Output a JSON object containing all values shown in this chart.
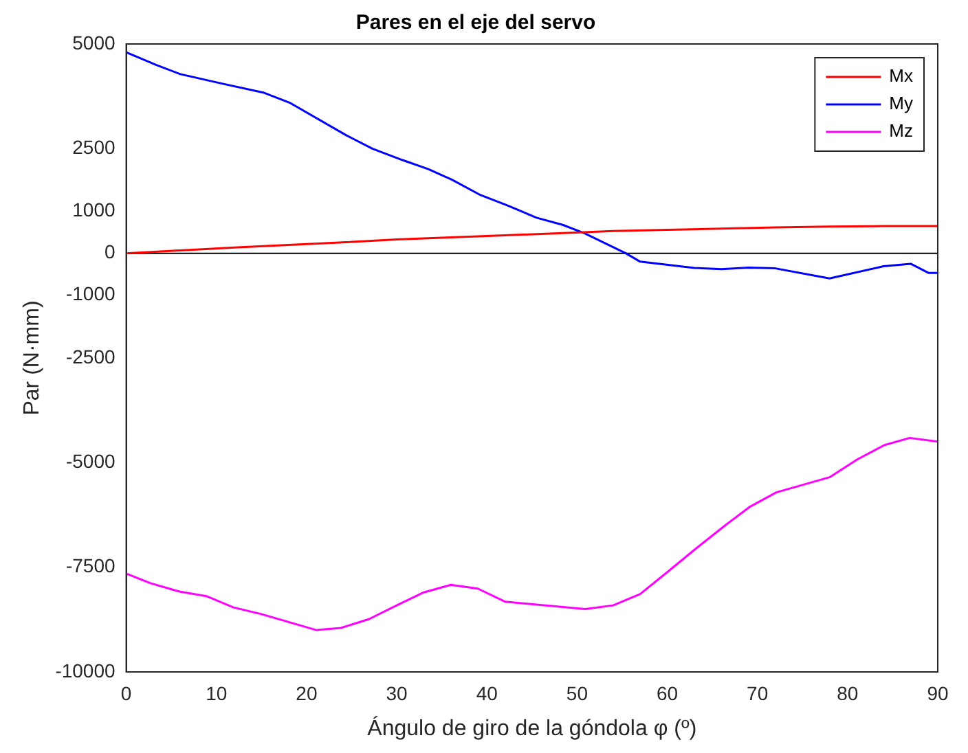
{
  "chart_data": {
    "type": "line",
    "title": "Pares en el eje del servo",
    "xlabel": "Ángulo de giro de la góndola φ (º)",
    "ylabel": "Par (N·mm)",
    "xlim": [
      0,
      90
    ],
    "xticks": [
      0,
      10,
      20,
      30,
      40,
      50,
      60,
      70,
      80,
      90
    ],
    "ylim": [
      -10000,
      5000
    ],
    "yticks": [
      -10000,
      -7500,
      -5000,
      -2500,
      -1000,
      0,
      1000,
      2500,
      5000
    ],
    "ref_lines": [
      {
        "axis": "y",
        "value": 0,
        "color": "#000000"
      }
    ],
    "legend": "top right",
    "grid": false,
    "series": [
      {
        "name": "Mx",
        "color": "#ff0000",
        "x": [
          0,
          6,
          12,
          18,
          24,
          30,
          36,
          42,
          48,
          54,
          60,
          66,
          72,
          78,
          84,
          90
        ],
        "values": [
          0,
          70,
          140,
          200,
          260,
          330,
          380,
          430,
          480,
          530,
          560,
          590,
          620,
          640,
          650,
          650
        ]
      },
      {
        "name": "My",
        "color": "#0000ff",
        "x": [
          0,
          3.3,
          6,
          10.7,
          15.2,
          18.1,
          24.4,
          27.3,
          30.6,
          33.5,
          36.1,
          39.3,
          42.3,
          45.5,
          48.4,
          50.8,
          55.4,
          57,
          63,
          66,
          69,
          72,
          78,
          84,
          87,
          89,
          90
        ],
        "values": [
          4800,
          4500,
          4280,
          4050,
          3840,
          3600,
          2820,
          2500,
          2230,
          2010,
          1760,
          1390,
          1140,
          850,
          680,
          480,
          0,
          -200,
          -350,
          -380,
          -340,
          -360,
          -600,
          -310,
          -250,
          -470,
          -470
        ]
      },
      {
        "name": "Mz",
        "color": "#ff00ff",
        "x": [
          0,
          2.7,
          5.9,
          8.9,
          11.9,
          15,
          21.1,
          23.8,
          26.9,
          30,
          33,
          36,
          39,
          42,
          44.9,
          50.9,
          54,
          57,
          60.1,
          63.2,
          66.3,
          69.2,
          72.1,
          78,
          81.1,
          84.1,
          86.9,
          90
        ],
        "values": [
          -7650,
          -7880,
          -8080,
          -8190,
          -8460,
          -8620,
          -9000,
          -8950,
          -8740,
          -8410,
          -8100,
          -7920,
          -8010,
          -8320,
          -8380,
          -8500,
          -8410,
          -8140,
          -7600,
          -7050,
          -6520,
          -6050,
          -5710,
          -5350,
          -4920,
          -4580,
          -4410,
          -4500
        ]
      }
    ]
  }
}
